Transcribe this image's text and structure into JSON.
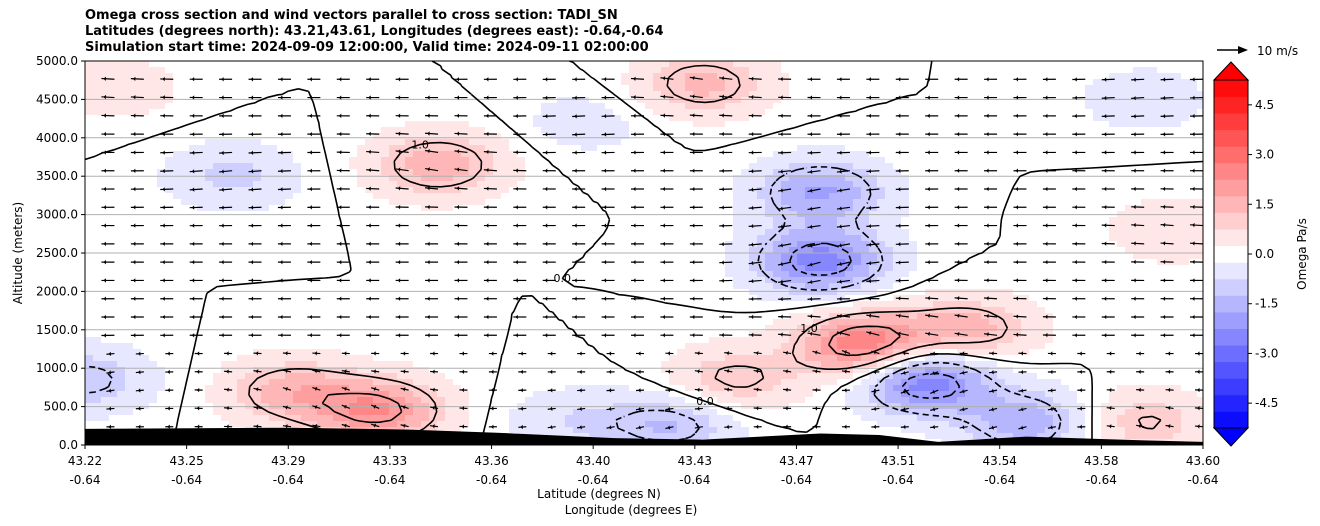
{
  "chart_data": {
    "type": "heatmap",
    "title_lines": [
      "Omega cross section and wind vectors parallel to cross section: TADI_SN",
      "Latitudes (degrees north): 43.21,43.61, Longitudes (degrees east): -0.64,-0.64",
      "Simulation start time: 2024-09-09 12:00:00, Valid time: 2024-09-11 02:00:00"
    ],
    "xlabel": "Latitude (degrees N)",
    "xlabel2": "Longitude (degrees E)",
    "ylabel": "Altitude (meters)",
    "x_ticks_lat": [
      "43.22",
      "43.25",
      "43.29",
      "43.33",
      "43.36",
      "43.40",
      "43.43",
      "43.47",
      "43.51",
      "43.54",
      "43.58",
      "43.60"
    ],
    "x_ticks_lon": [
      "-0.64",
      "-0.64",
      "-0.64",
      "-0.64",
      "-0.64",
      "-0.64",
      "-0.64",
      "-0.64",
      "-0.64",
      "-0.64",
      "-0.64",
      "-0.64"
    ],
    "y_ticks": [
      "0.0",
      "500.0",
      "1000.0",
      "1500.0",
      "2000.0",
      "2500.0",
      "3000.0",
      "3500.0",
      "4000.0",
      "4500.0",
      "5000.0"
    ],
    "y_tick_values": [
      0,
      500,
      1000,
      1500,
      2000,
      2500,
      3000,
      3500,
      4000,
      4500,
      5000
    ],
    "ylim": [
      0,
      5000
    ],
    "grid": "horizontal",
    "colorbar": {
      "label": "Omega Pa/s",
      "range": [
        -5.25,
        5.25
      ],
      "step": 0.5,
      "ticks": [
        "-4.5",
        "-3.0",
        "-1.5",
        "0.0",
        "1.5",
        "3.0",
        "4.5"
      ],
      "tick_values": [
        -4.5,
        -3.0,
        -1.5,
        0.0,
        1.5,
        3.0,
        4.5
      ],
      "extend": "both",
      "cmap": "bwr"
    },
    "quiver_key": "10 m/s",
    "contour_labels": [
      "0.0",
      "1.0",
      "-1.0",
      "2.0",
      "-2.0",
      "3.0"
    ],
    "omega_features": [
      {
        "lat": 43.23,
        "alt": 4650,
        "omega": 0.6
      },
      {
        "lat": 43.34,
        "alt": 3650,
        "omega": 1.6
      },
      {
        "lat": 43.27,
        "alt": 3500,
        "omega": -0.9
      },
      {
        "lat": 43.43,
        "alt": 4700,
        "omega": 1.4
      },
      {
        "lat": 43.47,
        "alt": 3300,
        "omega": -1.8
      },
      {
        "lat": 43.47,
        "alt": 2400,
        "omega": -2.5
      },
      {
        "lat": 43.485,
        "alt": 1300,
        "omega": 2.8
      },
      {
        "lat": 43.52,
        "alt": 1500,
        "omega": 1.5
      },
      {
        "lat": 43.505,
        "alt": 850,
        "omega": -2.8
      },
      {
        "lat": 43.32,
        "alt": 450,
        "omega": 2.2
      },
      {
        "lat": 43.29,
        "alt": 700,
        "omega": 1.5
      },
      {
        "lat": 43.385,
        "alt": 300,
        "omega": -0.7
      },
      {
        "lat": 43.42,
        "alt": 280,
        "omega": -1.3
      },
      {
        "lat": 43.44,
        "alt": 850,
        "omega": 1.2
      },
      {
        "lat": 43.54,
        "alt": 300,
        "omega": -1.6
      },
      {
        "lat": 43.58,
        "alt": 300,
        "omega": 1.1
      },
      {
        "lat": 43.22,
        "alt": 850,
        "omega": -1.2
      },
      {
        "lat": 43.59,
        "alt": 2800,
        "omega": 0.7
      },
      {
        "lat": 43.58,
        "alt": 4500,
        "omega": -0.6
      },
      {
        "lat": 43.39,
        "alt": 4200,
        "omega": -0.5
      }
    ],
    "terrain_profile": [
      {
        "lat": 43.22,
        "alt": 210
      },
      {
        "lat": 43.29,
        "alt": 225
      },
      {
        "lat": 43.33,
        "alt": 200
      },
      {
        "lat": 43.36,
        "alt": 160
      },
      {
        "lat": 43.4,
        "alt": 90
      },
      {
        "lat": 43.43,
        "alt": 70
      },
      {
        "lat": 43.47,
        "alt": 150
      },
      {
        "lat": 43.49,
        "alt": 130
      },
      {
        "lat": 43.51,
        "alt": 40
      },
      {
        "lat": 43.54,
        "alt": 110
      },
      {
        "lat": 43.58,
        "alt": 60
      },
      {
        "lat": 43.6,
        "alt": 40
      }
    ]
  }
}
